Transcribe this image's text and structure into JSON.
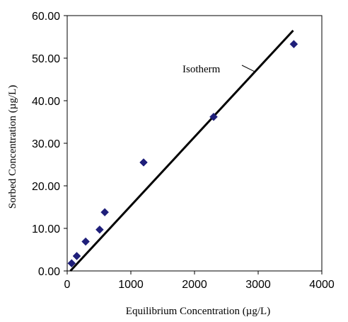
{
  "chart_data": {
    "type": "scatter",
    "xlabel": "Equilibrium Concentration (µg/L)",
    "ylabel": "Sorbed Concentration (µg/L)",
    "xlim": [
      0,
      4000
    ],
    "ylim": [
      0,
      60
    ],
    "x_ticks": [
      0,
      1000,
      2000,
      3000,
      4000
    ],
    "x_tick_labels": [
      "0",
      "1000",
      "2000",
      "3000",
      "4000"
    ],
    "y_ticks": [
      0,
      10,
      20,
      30,
      40,
      50,
      60
    ],
    "y_tick_labels": [
      "0.00",
      "10.00",
      "20.00",
      "30.00",
      "40.00",
      "50.00",
      "60.00"
    ],
    "grid": false,
    "series": [
      {
        "marker": "diamond",
        "color": "#1f1f7a",
        "points": [
          {
            "x": 70,
            "y": 1.8
          },
          {
            "x": 150,
            "y": 3.5
          },
          {
            "x": 290,
            "y": 6.9
          },
          {
            "x": 510,
            "y": 9.7
          },
          {
            "x": 590,
            "y": 13.8
          },
          {
            "x": 1200,
            "y": 25.5
          },
          {
            "x": 2300,
            "y": 36.2
          },
          {
            "x": 3560,
            "y": 53.3
          }
        ]
      },
      {
        "type": "line",
        "color": "#000000",
        "points": [
          {
            "x": 50,
            "y": 0
          },
          {
            "x": 3550,
            "y": 56.5
          }
        ]
      }
    ],
    "annotations": [
      {
        "text": "Isotherm",
        "pointer_to": {
          "x": 2950,
          "y": 46.8
        }
      }
    ]
  }
}
